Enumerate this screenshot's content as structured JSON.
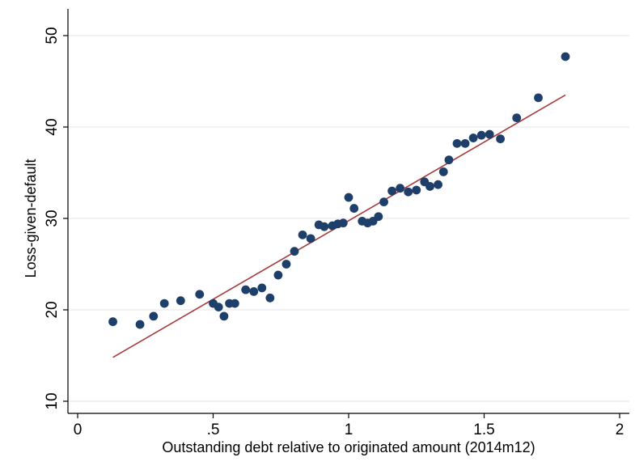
{
  "chart_data": {
    "type": "scatter",
    "xlabel": "Outstanding debt relative to originated amount (2014m12)",
    "ylabel": "Loss-given-default",
    "xlim": [
      0,
      2
    ],
    "ylim": [
      10,
      50
    ],
    "x_ticks": [
      0,
      0.5,
      1,
      1.5,
      2
    ],
    "x_tick_labels": [
      "0",
      ".5",
      "1",
      "1.5",
      "2"
    ],
    "y_ticks": [
      10,
      20,
      30,
      40,
      50
    ],
    "y_tick_labels": [
      "10",
      "20",
      "30",
      "40",
      "50"
    ],
    "grid": true,
    "colors": {
      "points": "#1f3f6b",
      "fit_line": "#a83c3c",
      "grid": "#e6e6e6",
      "axis": "#000000"
    },
    "series": [
      {
        "type": "scatter",
        "points": [
          [
            0.13,
            18.7
          ],
          [
            0.23,
            18.4
          ],
          [
            0.28,
            19.3
          ],
          [
            0.32,
            20.7
          ],
          [
            0.38,
            21.0
          ],
          [
            0.45,
            21.7
          ],
          [
            0.5,
            20.7
          ],
          [
            0.52,
            20.3
          ],
          [
            0.54,
            19.3
          ],
          [
            0.56,
            20.7
          ],
          [
            0.58,
            20.7
          ],
          [
            0.62,
            22.2
          ],
          [
            0.65,
            22.0
          ],
          [
            0.68,
            22.4
          ],
          [
            0.71,
            21.3
          ],
          [
            0.74,
            23.8
          ],
          [
            0.77,
            25.0
          ],
          [
            0.8,
            26.4
          ],
          [
            0.83,
            28.2
          ],
          [
            0.86,
            27.8
          ],
          [
            0.89,
            29.3
          ],
          [
            0.91,
            29.1
          ],
          [
            0.94,
            29.2
          ],
          [
            0.96,
            29.4
          ],
          [
            0.98,
            29.5
          ],
          [
            1.0,
            32.3
          ],
          [
            1.02,
            31.1
          ],
          [
            1.05,
            29.7
          ],
          [
            1.07,
            29.5
          ],
          [
            1.09,
            29.7
          ],
          [
            1.11,
            30.2
          ],
          [
            1.13,
            31.8
          ],
          [
            1.16,
            33.0
          ],
          [
            1.19,
            33.3
          ],
          [
            1.22,
            32.9
          ],
          [
            1.25,
            33.1
          ],
          [
            1.28,
            34.0
          ],
          [
            1.3,
            33.5
          ],
          [
            1.33,
            33.7
          ],
          [
            1.35,
            35.1
          ],
          [
            1.37,
            36.4
          ],
          [
            1.4,
            38.2
          ],
          [
            1.43,
            38.2
          ],
          [
            1.46,
            38.8
          ],
          [
            1.49,
            39.1
          ],
          [
            1.52,
            39.2
          ],
          [
            1.56,
            38.7
          ],
          [
            1.62,
            41.0
          ],
          [
            1.7,
            43.2
          ],
          [
            1.8,
            47.7
          ]
        ]
      },
      {
        "type": "line",
        "points": [
          [
            0.13,
            14.8
          ],
          [
            1.8,
            43.5
          ]
        ]
      }
    ]
  }
}
